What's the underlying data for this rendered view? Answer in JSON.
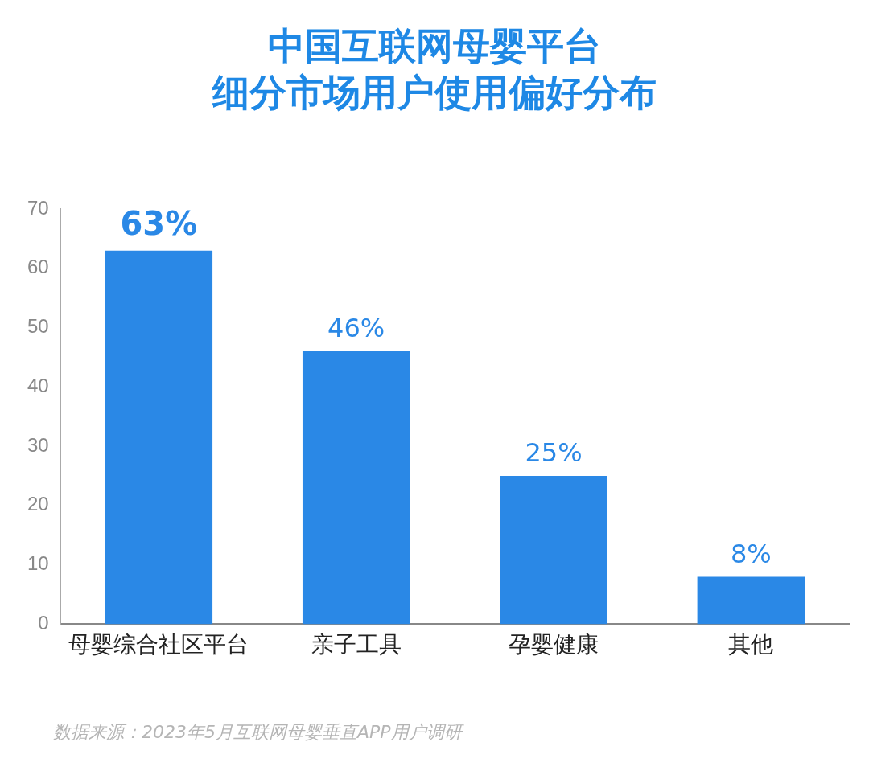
{
  "chart_data": {
    "type": "bar",
    "title": "中国互联网母婴平台",
    "subtitle": "细分市场用户使用偏好分布",
    "categories": [
      "母婴综合社区平台",
      "亲子工具",
      "孕婴健康",
      "其他"
    ],
    "values": [
      63,
      46,
      25,
      8
    ],
    "value_labels": [
      "63%",
      "46%",
      "25%",
      "8%"
    ],
    "color": "#2a88e6",
    "ylim": [
      0,
      70
    ],
    "yticks": [
      0,
      10,
      20,
      30,
      40,
      50,
      60,
      70
    ],
    "grid": false,
    "legend": false,
    "annotations": [
      "数据来源：2023年5月互联网母婴垂直APP用户调研"
    ]
  }
}
